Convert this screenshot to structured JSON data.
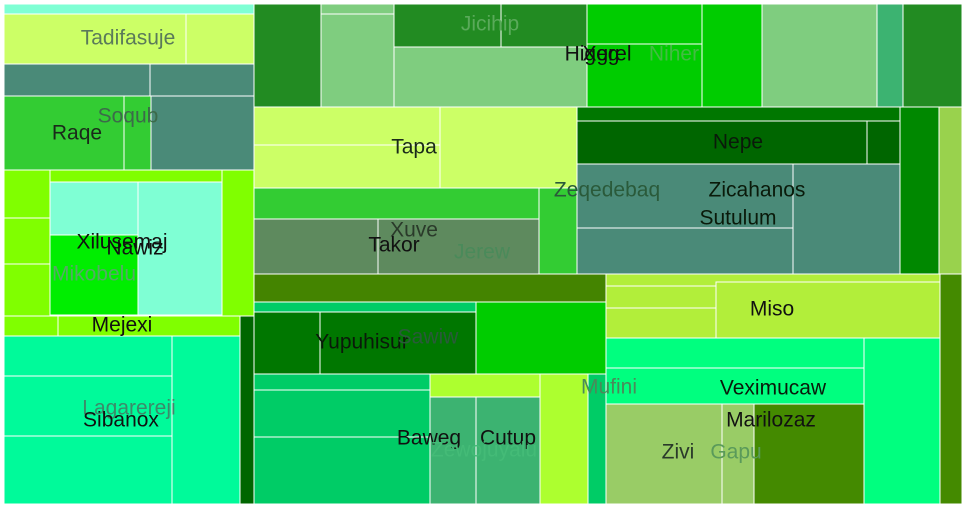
{
  "chart_data": {
    "type": "treemap",
    "title": "",
    "tiles": [
      {
        "id": "t1",
        "color": "#7fffd4"
      },
      {
        "id": "t2",
        "color": "#ccff66"
      },
      {
        "id": "t3",
        "color": "#ccff66"
      },
      {
        "id": "t4",
        "color": "#4a8a78"
      },
      {
        "id": "t5",
        "color": "#4a8a78"
      },
      {
        "id": "t6",
        "color": "#33cc33"
      },
      {
        "id": "t7",
        "color": "#33cc33"
      },
      {
        "id": "t8",
        "color": "#4a8a78"
      },
      {
        "id": "t9",
        "color": "#80ff00"
      },
      {
        "id": "t10",
        "color": "#80ff00"
      },
      {
        "id": "t11",
        "color": "#80ff00"
      },
      {
        "id": "t12",
        "color": "#80ff00"
      },
      {
        "id": "t13",
        "color": "#00ff00"
      },
      {
        "id": "t14",
        "color": "#7fffd4"
      },
      {
        "id": "t15",
        "color": "#7fffd4"
      },
      {
        "id": "t16",
        "color": "#00ee00"
      },
      {
        "id": "t17",
        "color": "#80ff00"
      },
      {
        "id": "t18",
        "color": "#80ff00"
      },
      {
        "id": "t19",
        "color": "#80ff00"
      },
      {
        "id": "t20",
        "color": "#006600"
      },
      {
        "id": "t21",
        "color": "#00fa9a"
      },
      {
        "id": "t22",
        "color": "#00fa9a"
      },
      {
        "id": "t23",
        "color": "#00fa9a"
      },
      {
        "id": "t24",
        "color": "#00fa9a"
      },
      {
        "id": "t25",
        "color": "#228b22"
      },
      {
        "id": "t26",
        "color": "#7fcd7f"
      },
      {
        "id": "t27",
        "color": "#7fcd7f"
      },
      {
        "id": "t28",
        "color": "#228b22"
      },
      {
        "id": "t29",
        "color": "#228b22"
      },
      {
        "id": "t30",
        "color": "#7fcd7f"
      },
      {
        "id": "t31",
        "color": "#00cc00"
      },
      {
        "id": "t32",
        "color": "#00cc00"
      },
      {
        "id": "t33",
        "color": "#00cc00"
      },
      {
        "id": "t34",
        "color": "#7fcd7f"
      },
      {
        "id": "t35",
        "color": "#3cb371"
      },
      {
        "id": "t36",
        "color": "#228b22"
      },
      {
        "id": "t37",
        "color": "#ccff66"
      },
      {
        "id": "t38",
        "color": "#ccff66"
      },
      {
        "id": "t39",
        "color": "#ccff66"
      },
      {
        "id": "t40",
        "color": "#33cc33"
      },
      {
        "id": "t41",
        "color": "#5e8a5e"
      },
      {
        "id": "t42",
        "color": "#5e8a5e"
      },
      {
        "id": "t43",
        "color": "#33cc33"
      },
      {
        "id": "t44",
        "color": "#007700"
      },
      {
        "id": "t45",
        "color": "#006600"
      },
      {
        "id": "t46",
        "color": "#006600"
      },
      {
        "id": "t47",
        "color": "#4a8a78"
      },
      {
        "id": "t48",
        "color": "#4a8a78"
      },
      {
        "id": "t49",
        "color": "#4a8a78"
      },
      {
        "id": "t50",
        "color": "#4a8a78"
      },
      {
        "id": "t51",
        "color": "#008800"
      },
      {
        "id": "t52",
        "color": "#99d24d"
      },
      {
        "id": "t53",
        "color": "#448400"
      },
      {
        "id": "t54",
        "color": "#00cc00"
      },
      {
        "id": "t55",
        "color": "#00cc66"
      },
      {
        "id": "t56",
        "color": "#007700"
      },
      {
        "id": "t57",
        "color": "#007700"
      },
      {
        "id": "t58",
        "color": "#00cc00"
      },
      {
        "id": "t59",
        "color": "#00cc66"
      },
      {
        "id": "t60",
        "color": "#00cc66"
      },
      {
        "id": "t61",
        "color": "#00cc66"
      },
      {
        "id": "t62",
        "color": "#adff2f"
      },
      {
        "id": "t63",
        "color": "#3cb371"
      },
      {
        "id": "t64",
        "color": "#3cb371"
      },
      {
        "id": "t65",
        "color": "#adff2f"
      },
      {
        "id": "t66",
        "color": "#00cc66"
      },
      {
        "id": "t67",
        "color": "#b2ee3a"
      },
      {
        "id": "t68",
        "color": "#b2ee3a"
      },
      {
        "id": "t69",
        "color": "#b2ee3a"
      },
      {
        "id": "t70",
        "color": "#00ff7f"
      },
      {
        "id": "t71",
        "color": "#00ff7f"
      },
      {
        "id": "t72",
        "color": "#00ff7f"
      },
      {
        "id": "t73",
        "color": "#99cc66"
      },
      {
        "id": "t74",
        "color": "#99cc66"
      },
      {
        "id": "t75",
        "color": "#448a00"
      },
      {
        "id": "t76",
        "color": "#00ff7f"
      },
      {
        "id": "t77",
        "color": "#448a00"
      }
    ],
    "labels": [
      {
        "text": "Tadifasuje",
        "color": "#5a7a5a"
      },
      {
        "text": "Soqub",
        "color": "#3c6a4a"
      },
      {
        "text": "Raqe",
        "color": "#1a2a1a"
      },
      {
        "text": "Jicihip",
        "color": "#5aaa5a"
      },
      {
        "text": "Higeg",
        "color": "#111111"
      },
      {
        "text": "Xgrel",
        "color": "#111111"
      },
      {
        "text": "Niher",
        "color": "#44bb44"
      },
      {
        "text": "Tapa",
        "color": "#1a2a1a"
      },
      {
        "text": "Nepe",
        "color": "#0a1a0a"
      },
      {
        "text": "Zeqedebaq",
        "color": "#2a5a3a"
      },
      {
        "text": "Zicahanos",
        "color": "#0a1a0a"
      },
      {
        "text": "Sutulum",
        "color": "#0a1a0a"
      },
      {
        "text": "Xuve",
        "color": "#2a3a2a"
      },
      {
        "text": "Takor",
        "color": "#111111"
      },
      {
        "text": "Jerew",
        "color": "#4a8a5a"
      },
      {
        "text": "Xilusemaj",
        "color": "#111111"
      },
      {
        "text": "Nawiz",
        "color": "#111111"
      },
      {
        "text": "Mikobelu",
        "color": "#55aa66"
      },
      {
        "text": "Mejexi",
        "color": "#111111"
      },
      {
        "text": "Yupuhisur",
        "color": "#0a1a0a"
      },
      {
        "text": "Sawiw",
        "color": "#2a5a3a"
      },
      {
        "text": "Miso",
        "color": "#111111"
      },
      {
        "text": "Mufini",
        "color": "#4a8a5a"
      },
      {
        "text": "Veximucaw",
        "color": "#0a1a0a"
      },
      {
        "text": "Marilozaz",
        "color": "#111111"
      },
      {
        "text": "Lagarereji",
        "color": "#3c8a6a"
      },
      {
        "text": "Sibanox",
        "color": "#111111"
      },
      {
        "text": "Baweg",
        "color": "#111111"
      },
      {
        "text": "Cutup",
        "color": "#111111"
      },
      {
        "text": "Zewojuyalu",
        "color": "#44bb77"
      },
      {
        "text": "Zivi",
        "color": "#2a3a2a"
      },
      {
        "text": "Gapu",
        "color": "#5a9a5a"
      }
    ]
  }
}
